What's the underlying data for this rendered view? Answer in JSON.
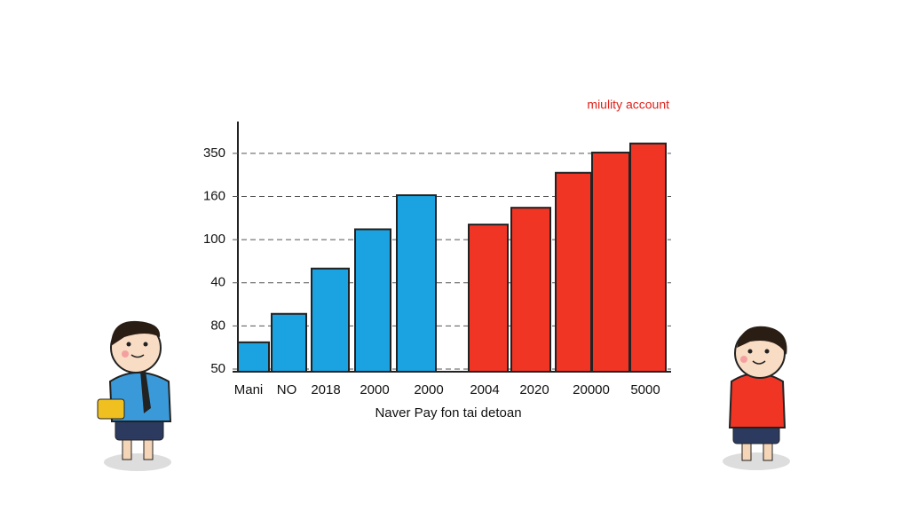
{
  "chart_data": {
    "type": "bar",
    "title": "miulity account",
    "x_label": "Naver Pay fon tai detoan",
    "categories": [
      "Mani",
      "NO",
      "2018",
      "2000",
      "2000",
      "2004",
      "2020",
      "20000",
      null,
      "5000"
    ],
    "series": [
      {
        "color": "#1aa3e0",
        "values": [
          0.62,
          1.28,
          2.33,
          3.24,
          4.03,
          null,
          null,
          null,
          null,
          null
        ]
      },
      {
        "color": "#f03525",
        "values": [
          null,
          null,
          null,
          null,
          null,
          3.35,
          3.74,
          4.55,
          5.02,
          5.23
        ]
      }
    ],
    "ylim": [
      0,
      5.8
    ],
    "yticks": [
      {
        "value": 0,
        "label": "50"
      },
      {
        "value": 1,
        "label": "80"
      },
      {
        "value": 2,
        "label": "40"
      },
      {
        "value": 3,
        "label": "100"
      },
      {
        "value": 4,
        "label": "160"
      },
      {
        "value": 5,
        "label": "350"
      }
    ],
    "grid": true
  }
}
